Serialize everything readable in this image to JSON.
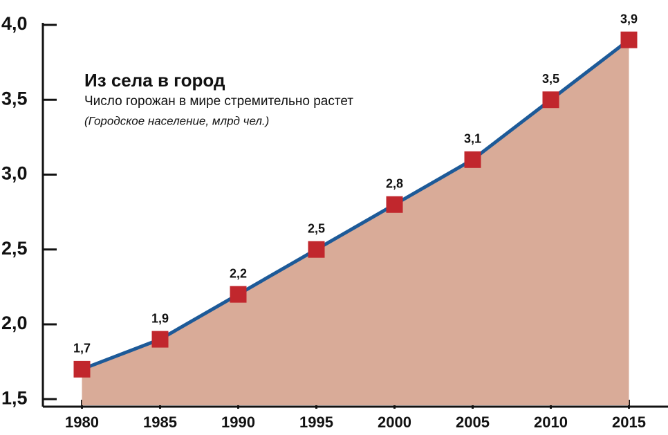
{
  "chart_data": {
    "type": "area-line",
    "title": "Из села в город",
    "subtitle": "Число горожан в мире стремительно растет",
    "note": "(Городское население, млрд чел.)",
    "x": [
      1980,
      1985,
      1990,
      1995,
      2000,
      2005,
      2010,
      2015
    ],
    "values": [
      1.7,
      1.9,
      2.2,
      2.5,
      2.8,
      3.1,
      3.5,
      3.9
    ],
    "value_labels": [
      "1,7",
      "1,9",
      "2,2",
      "2,5",
      "2,8",
      "3,1",
      "3,5",
      "3,9"
    ],
    "line_color": "#1d5a98",
    "fill_color": "#d9ab98",
    "marker_color": "#c1272d",
    "xlim": [
      1977.5,
      2017.5
    ],
    "xticks": [
      1980,
      1985,
      1990,
      1995,
      2000,
      2005,
      2010,
      2015
    ],
    "ylim": [
      1.45,
      4.0
    ],
    "yticks": [
      {
        "value": 1.5,
        "label": "1,5"
      },
      {
        "value": 2,
        "label": "2,0"
      },
      {
        "value": 2.5,
        "label": "2,5"
      },
      {
        "value": 3,
        "label": "3,0"
      },
      {
        "value": 3.5,
        "label": "3,5"
      },
      {
        "value": 4,
        "label": "4,0"
      }
    ]
  }
}
